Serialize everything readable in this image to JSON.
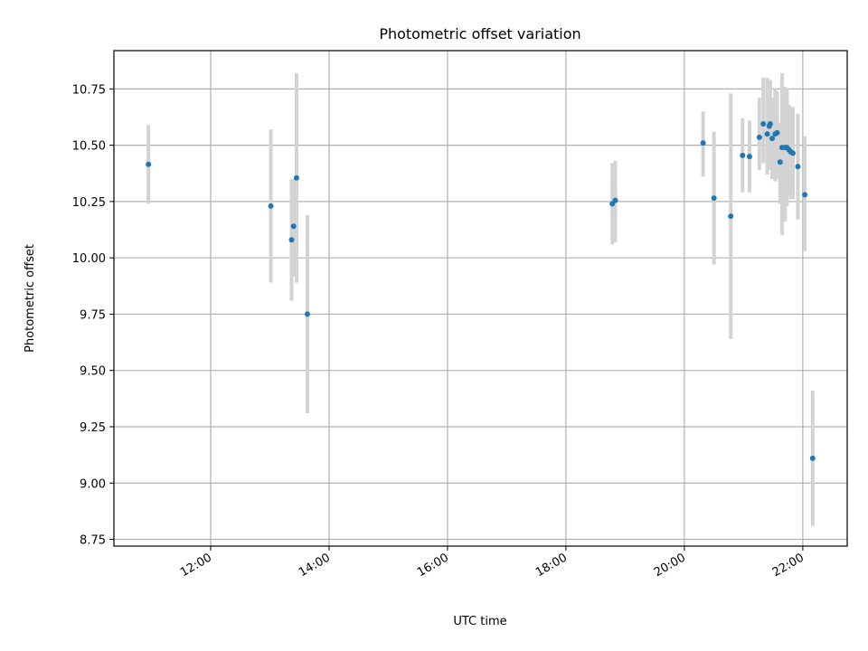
{
  "chart_data": {
    "type": "scatter",
    "title": "Photometric offset variation",
    "xlabel": "UTC time",
    "ylabel": "Photometric offset",
    "xlim": [
      "10:22",
      "22:45"
    ],
    "ylim": [
      8.72,
      10.92
    ],
    "xticks": [
      "12:00",
      "14:00",
      "16:00",
      "18:00",
      "20:00",
      "22:00"
    ],
    "yticks": [
      "8.75",
      "9.00",
      "9.25",
      "9.50",
      "9.75",
      "10.00",
      "10.25",
      "10.50",
      "10.75"
    ],
    "grid": true,
    "colors": {
      "point": "#1f77b4",
      "errorbar": "#d3d3d3",
      "grid": "#b0b0b0"
    },
    "points": [
      {
        "x": "10:57",
        "y": 10.415,
        "yerr_low": 10.24,
        "yerr_high": 10.59
      },
      {
        "x": "13:01",
        "y": 10.23,
        "yerr_low": 9.89,
        "yerr_high": 10.57
      },
      {
        "x": "13:22",
        "y": 10.08,
        "yerr_low": 9.81,
        "yerr_high": 10.35
      },
      {
        "x": "13:24",
        "y": 10.14,
        "yerr_low": 9.92,
        "yerr_high": 10.35
      },
      {
        "x": "13:27",
        "y": 10.355,
        "yerr_low": 9.89,
        "yerr_high": 10.82
      },
      {
        "x": "13:38",
        "y": 9.75,
        "yerr_low": 9.31,
        "yerr_high": 10.19
      },
      {
        "x": "18:47",
        "y": 10.24,
        "yerr_low": 10.06,
        "yerr_high": 10.42
      },
      {
        "x": "18:50",
        "y": 10.255,
        "yerr_low": 10.07,
        "yerr_high": 10.43
      },
      {
        "x": "20:19",
        "y": 10.51,
        "yerr_low": 10.36,
        "yerr_high": 10.65
      },
      {
        "x": "20:30",
        "y": 10.265,
        "yerr_low": 9.97,
        "yerr_high": 10.56
      },
      {
        "x": "20:47",
        "y": 10.185,
        "yerr_low": 9.64,
        "yerr_high": 10.73
      },
      {
        "x": "20:59",
        "y": 10.455,
        "yerr_low": 10.29,
        "yerr_high": 10.62
      },
      {
        "x": "21:06",
        "y": 10.45,
        "yerr_low": 10.29,
        "yerr_high": 10.61
      },
      {
        "x": "21:16",
        "y": 10.535,
        "yerr_low": 10.39,
        "yerr_high": 10.71
      },
      {
        "x": "21:20",
        "y": 10.595,
        "yerr_low": 10.42,
        "yerr_high": 10.8
      },
      {
        "x": "21:24",
        "y": 10.55,
        "yerr_low": 10.37,
        "yerr_high": 10.8
      },
      {
        "x": "21:26",
        "y": 10.585,
        "yerr_low": 10.39,
        "yerr_high": 10.78
      },
      {
        "x": "21:27",
        "y": 10.595,
        "yerr_low": 10.4,
        "yerr_high": 10.79
      },
      {
        "x": "21:29",
        "y": 10.53,
        "yerr_low": 10.35,
        "yerr_high": 10.71
      },
      {
        "x": "21:32",
        "y": 10.55,
        "yerr_low": 10.34,
        "yerr_high": 10.75
      },
      {
        "x": "21:34",
        "y": 10.555,
        "yerr_low": 10.35,
        "yerr_high": 10.74
      },
      {
        "x": "21:37",
        "y": 10.425,
        "yerr_low": 10.24,
        "yerr_high": 10.6
      },
      {
        "x": "21:39",
        "y": 10.49,
        "yerr_low": 10.1,
        "yerr_high": 10.82
      },
      {
        "x": "21:42",
        "y": 10.49,
        "yerr_low": 10.16,
        "yerr_high": 10.76
      },
      {
        "x": "21:44",
        "y": 10.49,
        "yerr_low": 10.23,
        "yerr_high": 10.75
      },
      {
        "x": "21:46",
        "y": 10.48,
        "yerr_low": 10.28,
        "yerr_high": 10.68
      },
      {
        "x": "21:48",
        "y": 10.47,
        "yerr_low": 10.26,
        "yerr_high": 10.67
      },
      {
        "x": "21:50",
        "y": 10.465,
        "yerr_low": 10.26,
        "yerr_high": 10.67
      },
      {
        "x": "21:55",
        "y": 10.405,
        "yerr_low": 10.17,
        "yerr_high": 10.64
      },
      {
        "x": "22:02",
        "y": 10.28,
        "yerr_low": 10.03,
        "yerr_high": 10.54
      },
      {
        "x": "22:10",
        "y": 9.11,
        "yerr_low": 8.81,
        "yerr_high": 9.41
      }
    ]
  }
}
